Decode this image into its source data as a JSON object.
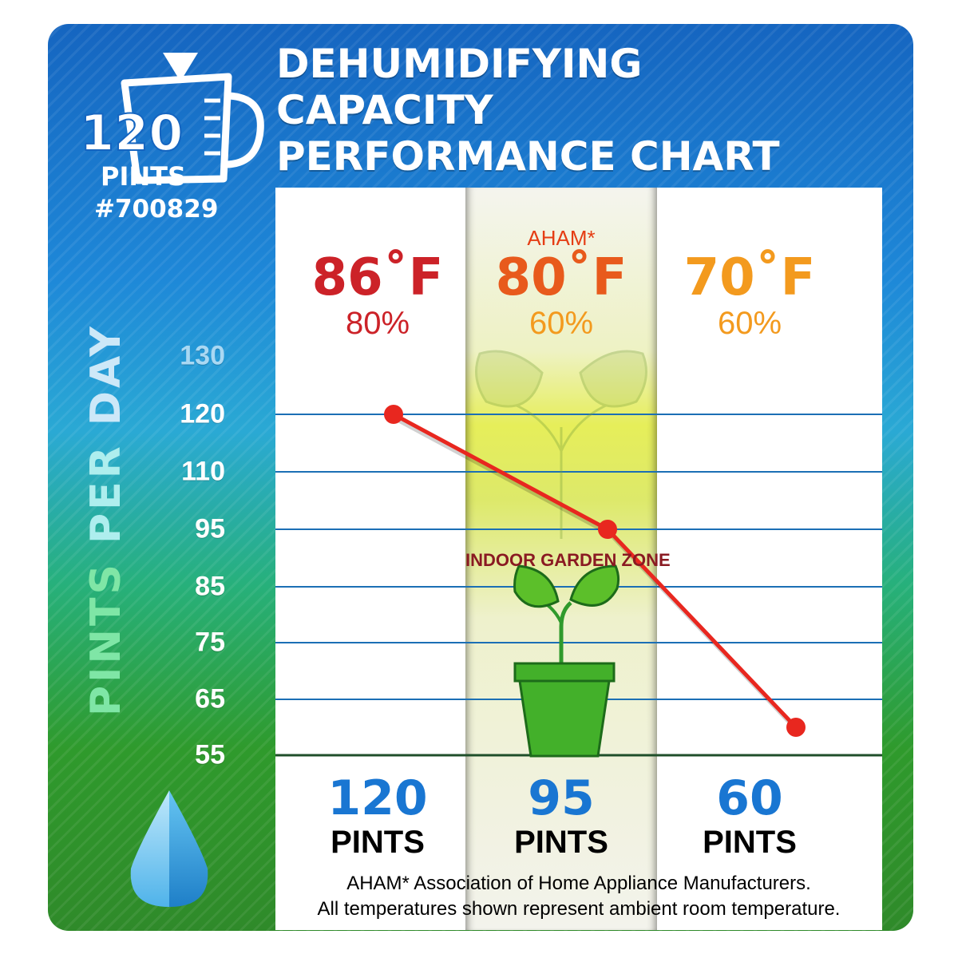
{
  "logo": {
    "number": "120",
    "unit": "PINTS"
  },
  "model_number": "#700829",
  "title_lines": [
    "DEHUMIDIFYING",
    "CAPACITY",
    "PERFORMANCE CHART"
  ],
  "y_axis_title_parts": [
    "PINTS",
    "PER",
    "DAY"
  ],
  "colors": {
    "temp_86": "#cc2228",
    "temp_80": "#e85a1c",
    "temp_70": "#f39a1e",
    "hum_80": "#cc2228",
    "hum_60": "#f39a1e",
    "line": "#e8271f",
    "pints": "#1976d2",
    "grid": "#1b6fb5"
  },
  "conditions": [
    {
      "standard": "",
      "temp": "86˚F",
      "humidity": "80%",
      "value": "120",
      "unit": "PINTS"
    },
    {
      "standard": "AHAM*",
      "temp": "80˚F",
      "humidity": "60%",
      "value": "95",
      "unit": "PINTS"
    },
    {
      "standard": "",
      "temp": "70˚F",
      "humidity": "60%",
      "value": "60",
      "unit": "PINTS"
    }
  ],
  "zone_label": "INDOOR GARDEN ZONE",
  "footnotes": [
    "AHAM* Association of Home Appliance Manufacturers.",
    "All temperatures shown represent ambient room temperature."
  ],
  "chart_data": {
    "type": "line",
    "title": "DEHUMIDIFYING CAPACITY PERFORMANCE CHART",
    "ylabel": "PINTS PER DAY",
    "xlabel": "",
    "categories": [
      "86˚F 80%",
      "80˚F 60%",
      "70˚F 60%"
    ],
    "series": [
      {
        "values": [
          120,
          95,
          60
        ]
      }
    ],
    "y_ticks": [
      "130",
      "120",
      "110",
      "95",
      "85",
      "75",
      "65",
      "55"
    ],
    "y_tick_values": [
      130,
      120,
      110,
      95,
      85,
      75,
      65,
      55
    ],
    "gridlines_at": [
      120,
      110,
      95,
      85,
      75,
      65,
      55
    ],
    "grid": true,
    "legend": "none"
  }
}
